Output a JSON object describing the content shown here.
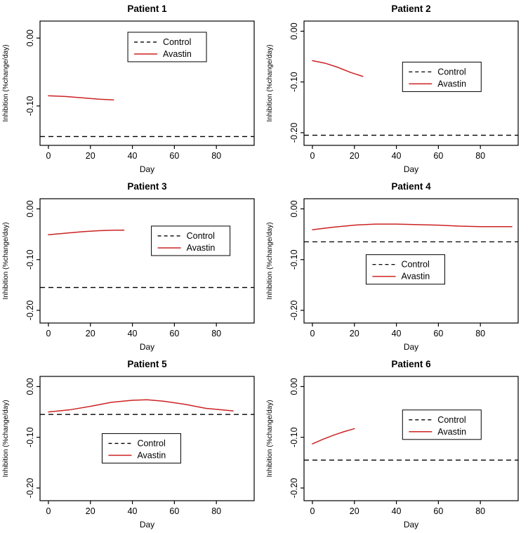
{
  "page": {
    "background": "#ffffff"
  },
  "chart_data": {
    "type": "line",
    "layout": {
      "rows": 3,
      "cols": 2
    },
    "shared": {
      "xlabel": "Day",
      "ylabel": "Inhibition (%change/day)",
      "xticks": [
        0,
        20,
        40,
        60,
        80
      ],
      "xlim": [
        -4,
        98
      ],
      "grid": false,
      "legend_entries": [
        {
          "label": "Control",
          "style": "dashed",
          "color": "#000000"
        },
        {
          "label": "Avastin",
          "style": "solid",
          "color": "#cc2222"
        }
      ]
    },
    "plots": [
      {
        "title": "Patient 1",
        "ylim": [
          -0.158,
          0.025
        ],
        "ytick_values": [
          0.0,
          -0.1
        ],
        "ytick_labels": [
          "0.00",
          "-0.10"
        ],
        "control_y": -0.145,
        "series": {
          "name": "Avastin",
          "x": [
            0,
            8,
            16,
            24,
            31
          ],
          "y": [
            -0.085,
            -0.086,
            -0.088,
            -0.09,
            -0.091
          ]
        },
        "legend_pos": [
          0.41,
          0.09
        ]
      },
      {
        "title": "Patient 2",
        "ylim": [
          -0.225,
          0.02
        ],
        "ytick_values": [
          0.0,
          -0.1,
          -0.2
        ],
        "ytick_labels": [
          "0.00",
          "-0.10",
          "-0.20"
        ],
        "control_y": -0.205,
        "series": {
          "name": "Avastin",
          "x": [
            0,
            6,
            12,
            18,
            24
          ],
          "y": [
            -0.058,
            -0.063,
            -0.071,
            -0.081,
            -0.089
          ]
        },
        "legend_pos": [
          0.46,
          0.33
        ]
      },
      {
        "title": "Patient 3",
        "ylim": [
          -0.225,
          0.02
        ],
        "ytick_values": [
          0.0,
          -0.1,
          -0.2
        ],
        "ytick_labels": [
          "0.00",
          "-0.10",
          "-0.20"
        ],
        "control_y": -0.155,
        "series": {
          "name": "Avastin",
          "x": [
            0,
            8,
            16,
            24,
            32,
            36
          ],
          "y": [
            -0.051,
            -0.048,
            -0.045,
            -0.043,
            -0.042,
            -0.042
          ]
        },
        "legend_pos": [
          0.52,
          0.22
        ]
      },
      {
        "title": "Patient 4",
        "ylim": [
          -0.225,
          0.02
        ],
        "ytick_values": [
          0.0,
          -0.1,
          -0.2
        ],
        "ytick_labels": [
          "0.00",
          "-0.10",
          "-0.20"
        ],
        "control_y": -0.065,
        "series": {
          "name": "Avastin",
          "x": [
            0,
            10,
            20,
            30,
            40,
            50,
            60,
            70,
            80,
            95
          ],
          "y": [
            -0.041,
            -0.036,
            -0.032,
            -0.03,
            -0.03,
            -0.031,
            -0.032,
            -0.034,
            -0.035,
            -0.035
          ]
        },
        "legend_pos": [
          0.29,
          0.45
        ]
      },
      {
        "title": "Patient 5",
        "ylim": [
          -0.225,
          0.02
        ],
        "ytick_values": [
          0.0,
          -0.1,
          -0.2
        ],
        "ytick_labels": [
          "0.00",
          "-0.10",
          "-0.20"
        ],
        "control_y": -0.055,
        "series": {
          "name": "Avastin",
          "x": [
            0,
            10,
            20,
            30,
            40,
            47,
            55,
            65,
            75,
            88
          ],
          "y": [
            -0.05,
            -0.046,
            -0.039,
            -0.031,
            -0.027,
            -0.026,
            -0.029,
            -0.035,
            -0.043,
            -0.048
          ]
        },
        "legend_pos": [
          0.29,
          0.46
        ]
      },
      {
        "title": "Patient 6",
        "ylim": [
          -0.225,
          0.02
        ],
        "ytick_values": [
          0.0,
          -0.1,
          -0.2
        ],
        "ytick_labels": [
          "0.00",
          "-0.10",
          "-0.20"
        ],
        "control_y": -0.145,
        "series": {
          "name": "Avastin",
          "x": [
            0,
            5,
            10,
            15,
            20
          ],
          "y": [
            -0.113,
            -0.104,
            -0.096,
            -0.089,
            -0.083
          ]
        },
        "legend_pos": [
          0.46,
          0.27
        ]
      }
    ]
  }
}
